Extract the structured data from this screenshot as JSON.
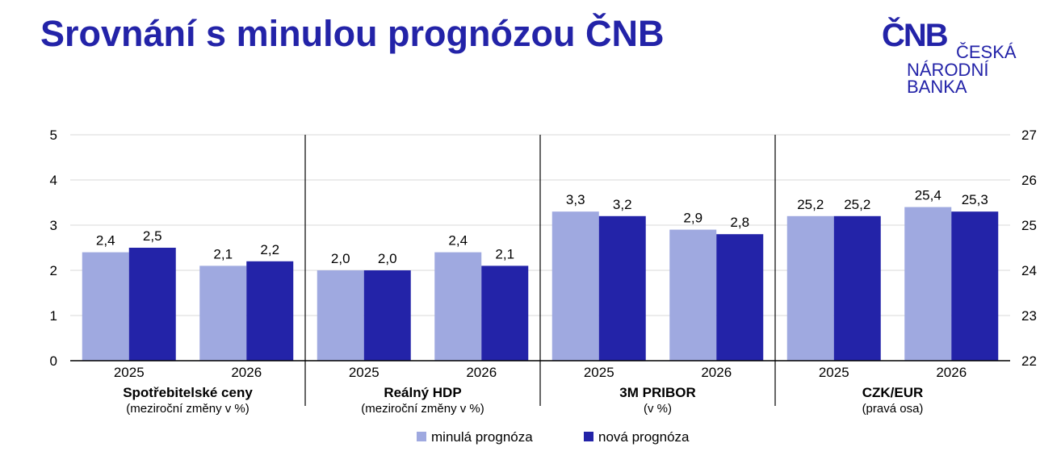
{
  "page": {
    "title": "Srovnání s minulou prognózou ČNB"
  },
  "logo": {
    "monogram": "ČNB",
    "line1": "ČESKÁ",
    "line2": "NÁRODNÍ",
    "line3": "BANKA"
  },
  "colors": {
    "title": "#2323a8",
    "previous": "#9fa9e0",
    "new": "#2323a8"
  },
  "chart_data": {
    "type": "bar",
    "grid": true,
    "legend_position": "bottom",
    "left_axis": {
      "ylim": [
        0,
        5
      ],
      "ticks": [
        0,
        1,
        2,
        3,
        4,
        5
      ]
    },
    "right_axis": {
      "ylim": [
        22,
        27
      ],
      "ticks": [
        22,
        23,
        24,
        25,
        26,
        27
      ]
    },
    "series": [
      {
        "name": "minulá prognóza"
      },
      {
        "name": "nová prognóza"
      }
    ],
    "groups": [
      {
        "label": "Spotřebitelské ceny",
        "sublabel": "(meziroční změny v %)",
        "axis": "left",
        "categories": [
          "2025",
          "2026"
        ],
        "values": [
          [
            2.4,
            2.5
          ],
          [
            2.1,
            2.2
          ]
        ],
        "value_labels": [
          [
            "2,4",
            "2,5"
          ],
          [
            "2,1",
            "2,2"
          ]
        ]
      },
      {
        "label": "Reálný HDP",
        "sublabel": "(meziroční změny v %)",
        "axis": "left",
        "categories": [
          "2025",
          "2026"
        ],
        "values": [
          [
            2.0,
            2.0
          ],
          [
            2.4,
            2.1
          ]
        ],
        "value_labels": [
          [
            "2,0",
            "2,0"
          ],
          [
            "2,4",
            "2,1"
          ]
        ]
      },
      {
        "label": "3M PRIBOR",
        "sublabel": "(v %)",
        "axis": "left",
        "categories": [
          "2025",
          "2026"
        ],
        "values": [
          [
            3.3,
            3.2
          ],
          [
            2.9,
            2.8
          ]
        ],
        "value_labels": [
          [
            "3,3",
            "3,2"
          ],
          [
            "2,9",
            "2,8"
          ]
        ]
      },
      {
        "label": "CZK/EUR",
        "sublabel": "(pravá osa)",
        "axis": "right",
        "categories": [
          "2025",
          "2026"
        ],
        "values": [
          [
            25.2,
            25.2
          ],
          [
            25.4,
            25.3
          ]
        ],
        "value_labels": [
          [
            "25,2",
            "25,2"
          ],
          [
            "25,4",
            "25,3"
          ]
        ]
      }
    ]
  }
}
